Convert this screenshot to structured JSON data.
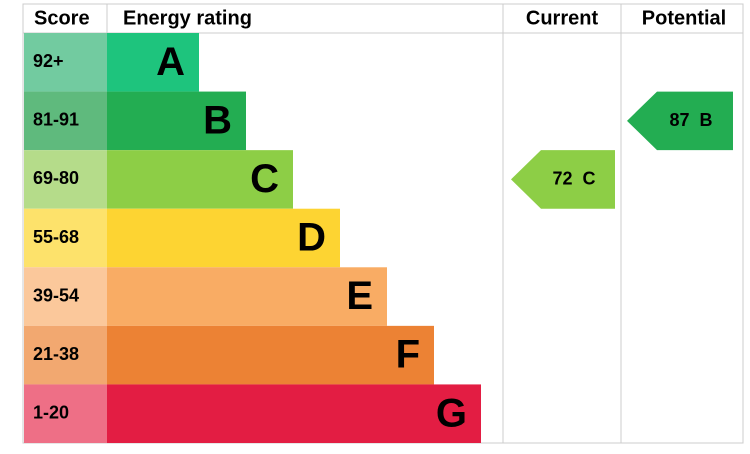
{
  "header": {
    "score": "Score",
    "rating": "Energy rating",
    "current": "Current",
    "potential": "Potential"
  },
  "rows": [
    {
      "score": "92+",
      "band": "A",
      "color": "#1ec47d",
      "score_color": "#72cba0"
    },
    {
      "score": "81-91",
      "band": "B",
      "color": "#23ad52",
      "score_color": "#5fba7d"
    },
    {
      "score": "69-80",
      "band": "C",
      "color": "#8dce46",
      "score_color": "#b5dc8a"
    },
    {
      "score": "55-68",
      "band": "D",
      "color": "#fdd432",
      "score_color": "#fde26b"
    },
    {
      "score": "39-54",
      "band": "E",
      "color": "#f9ac64",
      "score_color": "#fbc89b"
    },
    {
      "score": "21-38",
      "band": "F",
      "color": "#ec8234",
      "score_color": "#f2a870"
    },
    {
      "score": "1-20",
      "band": "G",
      "color": "#e31d43",
      "score_color": "#ee6f86"
    }
  ],
  "current": {
    "score": 72,
    "band": "C"
  },
  "potential": {
    "score": 87,
    "band": "B"
  }
}
